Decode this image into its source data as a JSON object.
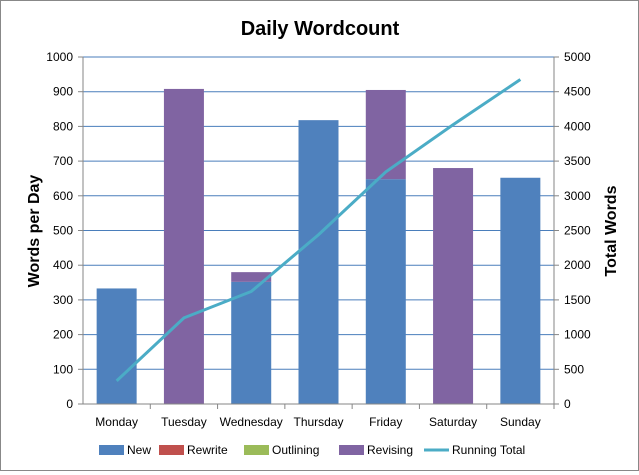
{
  "chart_data": {
    "type": "bar",
    "stacked": true,
    "title": "Daily Wordcount",
    "ylabel": "Words per Day",
    "y2label": "Total Words",
    "xlabel": "",
    "ylim": [
      0,
      1000
    ],
    "y2lim": [
      0,
      5000
    ],
    "yticks": [
      "0",
      "100",
      "200",
      "300",
      "400",
      "500",
      "600",
      "700",
      "800",
      "900",
      "1000"
    ],
    "y2ticks": [
      "0",
      "500",
      "1000",
      "1500",
      "2000",
      "2500",
      "3000",
      "3500",
      "4000",
      "4500",
      "5000"
    ],
    "grid": true,
    "legend_position": "bottom",
    "categories": [
      "Monday",
      "Tuesday",
      "Wednesday",
      "Thursday",
      "Friday",
      "Saturday",
      "Sunday"
    ],
    "series": [
      {
        "name": "New",
        "type": "bar",
        "color": "#4F81BD",
        "values": [
          333,
          0,
          352,
          818,
          648,
          0,
          652
        ]
      },
      {
        "name": "Rewrite",
        "type": "bar",
        "color": "#C0504D",
        "values": [
          0,
          0,
          0,
          0,
          0,
          0,
          0
        ]
      },
      {
        "name": "Outlining",
        "type": "bar",
        "color": "#9BBB59",
        "values": [
          0,
          0,
          0,
          0,
          0,
          0,
          0
        ]
      },
      {
        "name": "Revising",
        "type": "bar",
        "color": "#8064A2",
        "values": [
          0,
          908,
          28,
          0,
          257,
          680,
          0
        ]
      },
      {
        "name": "Running Total",
        "type": "line",
        "axis": "secondary",
        "color": "#4BACC6",
        "values": [
          333,
          1241,
          1621,
          2439,
          3344,
          4024,
          4676
        ]
      }
    ]
  }
}
